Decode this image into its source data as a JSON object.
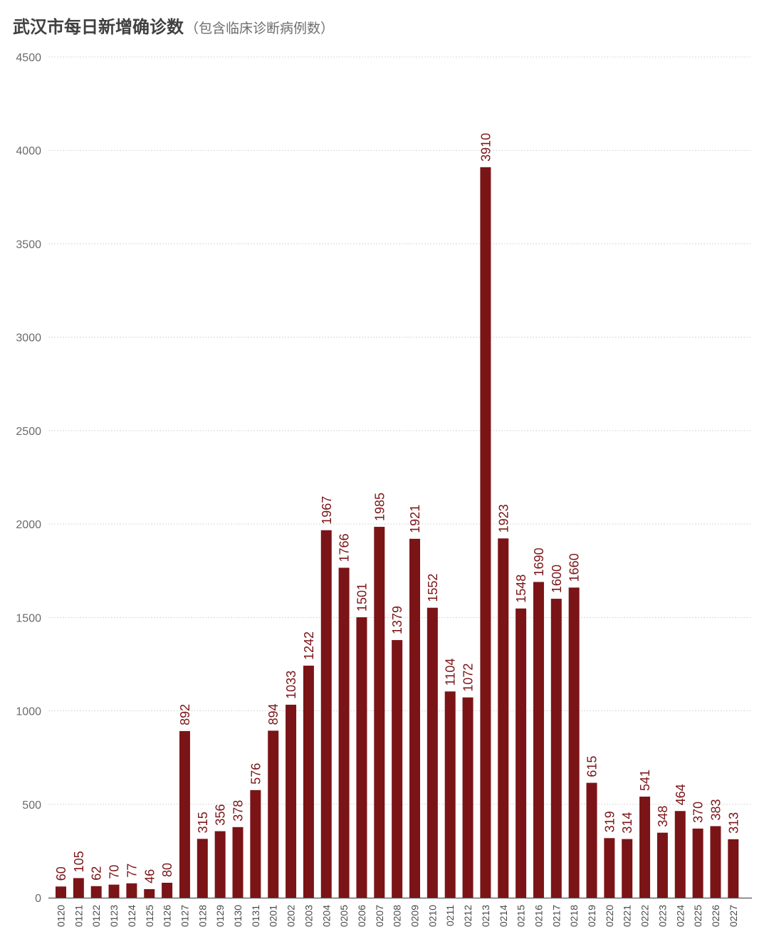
{
  "title": "武汉市每日新增确诊数",
  "subtitle": "（包含临床诊断病例数）",
  "colors": {
    "bar": "#7b1417",
    "grid": "#d8d8d8",
    "axis": "#555555",
    "label": "#7b1417"
  },
  "chart_data": {
    "type": "bar",
    "title": "武汉市每日新增确诊数",
    "subtitle": "（包含临床诊断病例数）",
    "xlabel": "",
    "ylabel": "",
    "ylim": [
      0,
      4500
    ],
    "yticks": [
      0,
      500,
      1000,
      1500,
      2000,
      2500,
      3000,
      3500,
      4000,
      4500
    ],
    "grid": true,
    "legend": "none",
    "categories": [
      "0120",
      "0121",
      "0122",
      "0123",
      "0124",
      "0125",
      "0126",
      "0127",
      "0128",
      "0129",
      "0130",
      "0131",
      "0201",
      "0202",
      "0203",
      "0204",
      "0205",
      "0206",
      "0207",
      "0208",
      "0209",
      "0210",
      "0211",
      "0212",
      "0213",
      "0214",
      "0215",
      "0216",
      "0217",
      "0218",
      "0219",
      "0220",
      "0221",
      "0222",
      "0223",
      "0224",
      "0225",
      "0226",
      "0227"
    ],
    "values": [
      60,
      105,
      62,
      70,
      77,
      46,
      80,
      892,
      315,
      356,
      378,
      576,
      894,
      1033,
      1242,
      1967,
      1766,
      1501,
      1985,
      1379,
      1921,
      1552,
      1104,
      1072,
      3910,
      1923,
      1548,
      1690,
      1600,
      1660,
      615,
      319,
      314,
      541,
      348,
      464,
      370,
      383,
      313
    ]
  }
}
